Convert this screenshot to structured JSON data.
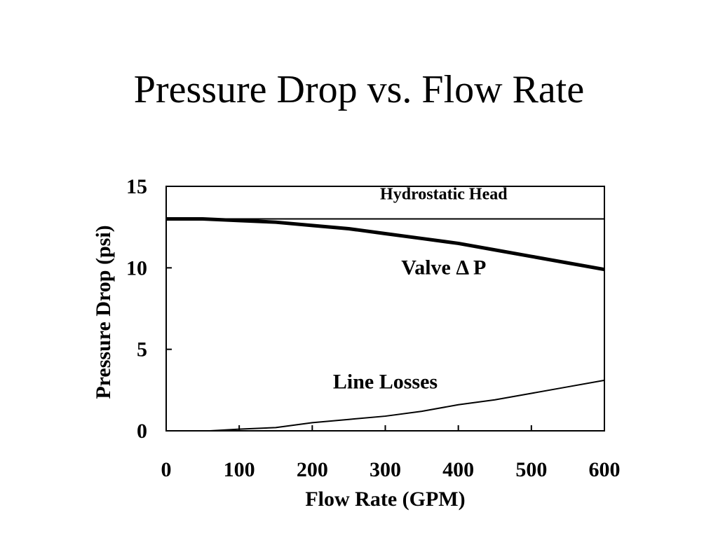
{
  "title": "Pressure Drop vs. Flow Rate",
  "chart_data": {
    "type": "line",
    "title": "Pressure Drop vs. Flow Rate",
    "xlabel": "Flow Rate (GPM)",
    "ylabel": "Pressure Drop (psi)",
    "xlim": [
      0,
      600
    ],
    "ylim": [
      0,
      15
    ],
    "xticks": [
      0,
      100,
      200,
      300,
      400,
      500,
      600
    ],
    "yticks": [
      0,
      5,
      10,
      15
    ],
    "grid": false,
    "series": [
      {
        "name": "Hydrostatic Head",
        "x": [
          0,
          600
        ],
        "y": [
          13,
          13
        ]
      },
      {
        "name": "Valve Δ P",
        "x": [
          0,
          50,
          100,
          150,
          200,
          250,
          300,
          350,
          400,
          450,
          500,
          550,
          600
        ],
        "y": [
          13.0,
          13.0,
          12.9,
          12.8,
          12.6,
          12.4,
          12.1,
          11.8,
          11.5,
          11.1,
          10.7,
          10.3,
          9.9
        ]
      },
      {
        "name": "Line Losses",
        "x": [
          0,
          60,
          100,
          150,
          200,
          250,
          300,
          350,
          400,
          450,
          500,
          550,
          600
        ],
        "y": [
          0.0,
          0.0,
          0.1,
          0.2,
          0.5,
          0.7,
          0.9,
          1.2,
          1.6,
          1.9,
          2.3,
          2.7,
          3.1
        ]
      }
    ],
    "annotations": [
      {
        "text": "Hydrostatic Head",
        "x": 380,
        "y": 14.2
      },
      {
        "text": "Valve Δ P",
        "x": 380,
        "y": 9.6
      },
      {
        "text": "Line Losses",
        "x": 300,
        "y": 2.6
      }
    ]
  }
}
